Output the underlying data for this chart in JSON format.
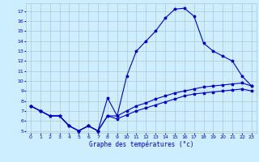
{
  "title": "Graphe des températures (°c)",
  "bg_color": "#cceeff",
  "grid_color": "#aacccc",
  "line_color": "#0000cc",
  "xlim": [
    -0.5,
    23.5
  ],
  "ylim": [
    4.8,
    17.8
  ],
  "xticks": [
    0,
    1,
    2,
    3,
    4,
    5,
    6,
    7,
    8,
    9,
    10,
    11,
    12,
    13,
    14,
    15,
    16,
    17,
    18,
    19,
    20,
    21,
    22,
    23
  ],
  "yticks": [
    5,
    6,
    7,
    8,
    9,
    10,
    11,
    12,
    13,
    14,
    15,
    16,
    17
  ],
  "line1_x": [
    0,
    1,
    2,
    3,
    4,
    5,
    6,
    7,
    8,
    9,
    10,
    11,
    12,
    13,
    14,
    15,
    16,
    17,
    18,
    19,
    20,
    21,
    22,
    23
  ],
  "line1_y": [
    7.5,
    7.0,
    6.5,
    6.5,
    5.5,
    5.0,
    5.5,
    5.0,
    8.3,
    6.5,
    10.5,
    13.0,
    14.0,
    15.0,
    16.3,
    17.2,
    17.3,
    16.5,
    13.8,
    13.0,
    12.5,
    12.0,
    10.5,
    9.5
  ],
  "line2_x": [
    0,
    1,
    2,
    3,
    4,
    5,
    6,
    7,
    8,
    9,
    10,
    11,
    12,
    13,
    14,
    15,
    16,
    17,
    18,
    19,
    20,
    21,
    22,
    23
  ],
  "line2_y": [
    7.5,
    7.0,
    6.5,
    6.5,
    5.5,
    5.0,
    5.5,
    5.0,
    6.5,
    6.5,
    7.0,
    7.5,
    7.8,
    8.2,
    8.5,
    8.8,
    9.0,
    9.2,
    9.4,
    9.5,
    9.6,
    9.7,
    9.8,
    9.5
  ],
  "line3_x": [
    0,
    1,
    2,
    3,
    4,
    5,
    6,
    7,
    8,
    9,
    10,
    11,
    12,
    13,
    14,
    15,
    16,
    17,
    18,
    19,
    20,
    21,
    22,
    23
  ],
  "line3_y": [
    7.5,
    7.0,
    6.5,
    6.5,
    5.5,
    5.0,
    5.5,
    5.0,
    6.5,
    6.2,
    6.6,
    7.0,
    7.3,
    7.6,
    7.9,
    8.2,
    8.5,
    8.7,
    8.8,
    8.9,
    9.0,
    9.1,
    9.2,
    9.0
  ]
}
